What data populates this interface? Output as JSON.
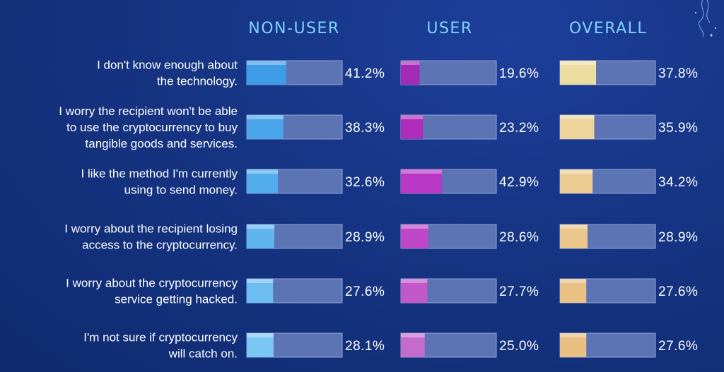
{
  "chart_data": {
    "type": "bar",
    "columns": [
      "NON-USER",
      "USER",
      "OVERALL"
    ],
    "categories": [
      [
        "I don't know enough about",
        "the technology."
      ],
      [
        "I worry the recipient won't be able",
        "to use the cryptocurrency to buy",
        "tangible goods and services."
      ],
      [
        "I like the method I'm currently",
        "using to send money."
      ],
      [
        "I worry about the recipient losing",
        "access to the cryptocurrency."
      ],
      [
        "I worry about the cryptocurrency",
        "service getting hacked."
      ],
      [
        "I'm not sure if cryptocurrency",
        "will catch on."
      ]
    ],
    "series": [
      {
        "name": "NON-USER",
        "values": [
          41.2,
          38.3,
          32.6,
          28.9,
          27.6,
          28.1
        ],
        "labels": [
          "41.2%",
          "38.3%",
          "32.6%",
          "28.9%",
          "27.6%",
          "28.1%"
        ]
      },
      {
        "name": "USER",
        "values": [
          19.6,
          23.2,
          42.9,
          28.6,
          27.7,
          25.0
        ],
        "labels": [
          "19.6%",
          "23.2%",
          "42.9%",
          "28.6%",
          "27.7%",
          "25.0%"
        ]
      },
      {
        "name": "OVERALL",
        "values": [
          37.8,
          35.9,
          34.2,
          28.9,
          27.6,
          27.6
        ],
        "labels": [
          "37.8%",
          "35.9%",
          "34.2%",
          "28.9%",
          "27.6%",
          "27.6%"
        ]
      }
    ],
    "ylim": [
      0,
      100
    ],
    "colors": {
      "track": "#5c74b4",
      "track_border": "#8fa3d8",
      "header_text": "#7fd3ff",
      "label_text": "#ffffff",
      "NON-USER": [
        "#3e9be6",
        "#4aa5ea",
        "#52acec",
        "#60b5ef",
        "#6cbdf1",
        "#7ac6f3"
      ],
      "USER": [
        "#a32bb5",
        "#b02cba",
        "#b837c5",
        "#bd47c7",
        "#c157c9",
        "#c56bcc"
      ],
      "OVERALL": [
        "#ecdca0",
        "#ecd49a",
        "#eccc92",
        "#eac78b",
        "#e9c184",
        "#e9bf82"
      ]
    }
  }
}
